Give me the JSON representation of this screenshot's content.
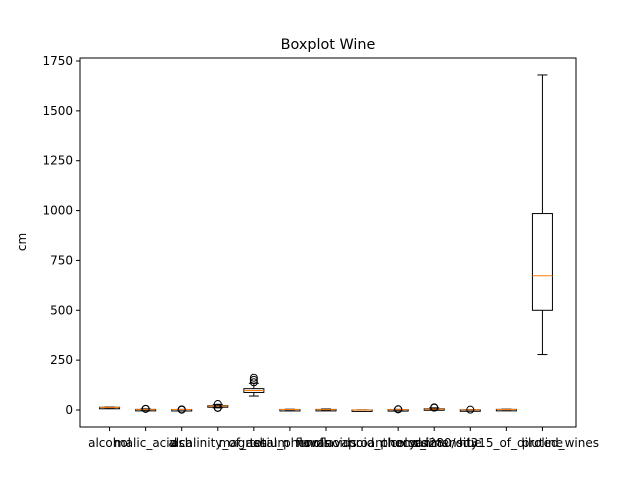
{
  "chart_data": {
    "type": "boxplot",
    "title": "Boxplot Wine",
    "xlabel": "",
    "ylabel": "cm",
    "ylim": [
      -85,
      1760
    ],
    "yticks": [
      0,
      250,
      500,
      750,
      1000,
      1250,
      1500,
      1750
    ],
    "ytick_labels": [
      "0",
      "250",
      "500",
      "750",
      "1000",
      "1250",
      "1500",
      "1750"
    ],
    "categories": [
      "alcohol",
      "malic_acid",
      "ash",
      "alcalinity_of_ash",
      "magnesium",
      "total_phenols",
      "flavanoids",
      "nonflavanoid_phenols",
      "proanthocyanins",
      "color_intensity",
      "hue",
      "od280/od315_of_diluted_wines",
      "proline"
    ],
    "boxes": [
      {
        "whislo": 11.0,
        "q1": 12.4,
        "med": 13.0,
        "q3": 13.7,
        "whishi": 14.8,
        "fliers": []
      },
      {
        "whislo": 0.7,
        "q1": 1.6,
        "med": 1.9,
        "q3": 3.1,
        "whishi": 5.6,
        "fliers": [
          5.8,
          5.9
        ]
      },
      {
        "whislo": 1.7,
        "q1": 2.2,
        "med": 2.4,
        "q3": 2.6,
        "whishi": 3.1,
        "fliers": [
          1.4,
          3.2
        ]
      },
      {
        "whislo": 10.6,
        "q1": 17.2,
        "med": 19.5,
        "q3": 21.5,
        "whishi": 28.0,
        "fliers": [
          30.0,
          10.6,
          11.2
        ]
      },
      {
        "whislo": 70,
        "q1": 88,
        "med": 98,
        "q3": 107,
        "whishi": 134,
        "fliers": [
          139,
          151,
          162
        ]
      },
      {
        "whislo": 1.0,
        "q1": 1.7,
        "med": 2.4,
        "q3": 2.8,
        "whishi": 3.9,
        "fliers": []
      },
      {
        "whislo": 0.3,
        "q1": 1.2,
        "med": 2.1,
        "q3": 2.9,
        "whishi": 5.1,
        "fliers": []
      },
      {
        "whislo": 0.1,
        "q1": 0.3,
        "med": 0.3,
        "q3": 0.4,
        "whishi": 0.7,
        "fliers": []
      },
      {
        "whislo": 0.4,
        "q1": 1.2,
        "med": 1.6,
        "q3": 2.0,
        "whishi": 3.3,
        "fliers": [
          3.5,
          3.6
        ]
      },
      {
        "whislo": 1.3,
        "q1": 3.2,
        "med": 4.7,
        "q3": 6.2,
        "whishi": 10.8,
        "fliers": [
          11.8,
          12.4,
          13.0
        ]
      },
      {
        "whislo": 0.5,
        "q1": 0.8,
        "med": 1.0,
        "q3": 1.1,
        "whishi": 1.7,
        "fliers": [
          1.71
        ]
      },
      {
        "whislo": 1.3,
        "q1": 1.9,
        "med": 2.8,
        "q3": 3.2,
        "whishi": 4.0,
        "fliers": []
      },
      {
        "whislo": 278,
        "q1": 500,
        "med": 673,
        "q3": 985,
        "whishi": 1680,
        "fliers": []
      }
    ],
    "grid": false,
    "legend": "none",
    "colors": {
      "box": "#000000",
      "median": "#ff7f0e",
      "background": "#ffffff"
    }
  }
}
